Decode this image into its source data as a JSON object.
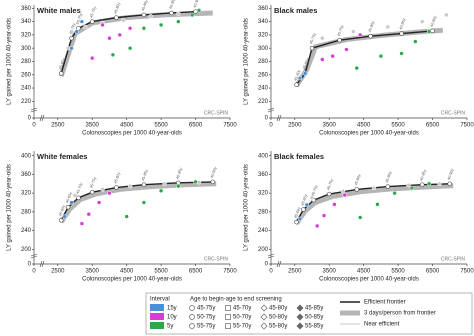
{
  "chart_data": [
    {
      "type": "scatter",
      "title": "White males",
      "xlabel": "Colonoscopies per 1000 40-year-olds",
      "ylabel": "LY gained per 1000 40-year-olds",
      "annotation": "CRC-SPIN",
      "xlim": [
        0,
        7500
      ],
      "xbreak": 2100,
      "xticks": [
        0,
        2500,
        3500,
        4500,
        5500,
        6500,
        7500
      ],
      "ylim": [
        0,
        365
      ],
      "ybreak": 210,
      "yticks": [
        0,
        220,
        240,
        260,
        280,
        300,
        320,
        340,
        360
      ],
      "series": [
        {
          "style": "band",
          "color": "#b5b5b5",
          "x": [
            2600,
            3000,
            3500,
            4500,
            5500,
            6500,
            7000
          ],
          "values": [
            258,
            322,
            338,
            346,
            350,
            352,
            353
          ]
        },
        {
          "style": "line",
          "color": "#222222",
          "x": [
            2600,
            2900,
            3100,
            3500,
            4200,
            5000,
            5800,
            6500
          ],
          "values": [
            262,
            315,
            330,
            340,
            346,
            350,
            353,
            355
          ],
          "point_labels": [
            "45-60y",
            "45-70y",
            "50-75y",
            "45-75y",
            "45-80y",
            "45-85y",
            "40-85y",
            "40-90y"
          ]
        },
        {
          "style": "scatter",
          "color": "#c8c8c8",
          "x": [
            2800,
            3300,
            3800,
            4400,
            5200,
            6000
          ],
          "values": [
            300,
            332,
            338,
            342,
            348,
            352
          ]
        },
        {
          "style": "scatter",
          "color": "#4a90d9",
          "x": [
            3050,
            3200,
            2900
          ],
          "values": [
            325,
            340,
            300
          ]
        },
        {
          "style": "scatter",
          "color": "#d63cd6",
          "x": [
            3500,
            3800,
            4000,
            4300,
            4600
          ],
          "values": [
            285,
            335,
            315,
            320,
            330
          ]
        },
        {
          "style": "scatter",
          "color": "#2aa84a",
          "x": [
            4100,
            4600,
            5000,
            5500,
            6000,
            6400,
            6600
          ],
          "values": [
            290,
            300,
            330,
            335,
            340,
            350,
            357
          ]
        }
      ]
    },
    {
      "type": "scatter",
      "title": "Black males",
      "xlabel": "Colonoscopies per 1000 40-year-olds",
      "ylabel": "LY gained per 1000 40-year-olds",
      "annotation": "CRC-SPIN",
      "xlim": [
        0,
        7500
      ],
      "xbreak": 2100,
      "xticks": [
        0,
        2500,
        3500,
        4500,
        5500,
        6500,
        7500
      ],
      "ylim": [
        0,
        365
      ],
      "ybreak": 210,
      "yticks": [
        0,
        220,
        240,
        260,
        280,
        300,
        320,
        340,
        360
      ],
      "series": [
        {
          "style": "band",
          "color": "#b5b5b5",
          "x": [
            2550,
            2850,
            3100,
            4000,
            5000,
            6000,
            6800
          ],
          "values": [
            243,
            268,
            302,
            313,
            319,
            324,
            327
          ]
        },
        {
          "style": "line",
          "color": "#222222",
          "x": [
            2550,
            2800,
            3000,
            3800,
            4700,
            5600,
            6500
          ],
          "values": [
            245,
            262,
            300,
            312,
            318,
            322,
            326
          ],
          "point_labels": [
            "45-60y",
            "45-65y",
            "45-70y",
            "45-75y",
            "45-80y",
            "40-85y",
            "40-90y"
          ]
        },
        {
          "style": "scatter",
          "color": "#c8c8c8",
          "x": [
            3300,
            4200,
            5200,
            6200,
            6900
          ],
          "values": [
            315,
            325,
            332,
            340,
            350
          ]
        },
        {
          "style": "scatter",
          "color": "#4a90d9",
          "x": [
            2650,
            2800
          ],
          "values": [
            255,
            262
          ]
        },
        {
          "style": "scatter",
          "color": "#d63cd6",
          "x": [
            3300,
            3600,
            4000,
            4400
          ],
          "values": [
            283,
            288,
            298,
            320
          ]
        },
        {
          "style": "scatter",
          "color": "#2aa84a",
          "x": [
            4300,
            5000,
            5600,
            6000,
            6400
          ],
          "values": [
            270,
            288,
            292,
            310,
            325
          ]
        }
      ]
    },
    {
      "type": "scatter",
      "title": "White females",
      "xlabel": "Colonoscopies per 1000 40-year-olds",
      "ylabel": "LY gained per 1000 40-year-olds",
      "annotation": "CRC-SPIN",
      "xlim": [
        0,
        7500
      ],
      "xbreak": 2100,
      "xticks": [
        0,
        2500,
        3500,
        4500,
        5500,
        6500,
        7500
      ],
      "ylim": [
        0,
        410
      ],
      "ybreak": 190,
      "yticks": [
        0,
        200,
        240,
        280,
        320,
        360,
        400
      ],
      "series": [
        {
          "style": "band",
          "color": "#b5b5b5",
          "x": [
            2600,
            2850,
            3150,
            3600,
            4300,
            5200,
            6200,
            7100
          ],
          "values": [
            258,
            286,
            306,
            318,
            328,
            334,
            338,
            340
          ]
        },
        {
          "style": "line",
          "color": "#222222",
          "x": [
            2600,
            2800,
            3100,
            3500,
            4200,
            5000,
            6000,
            7000
          ],
          "values": [
            262,
            290,
            310,
            322,
            332,
            338,
            342,
            344
          ],
          "point_labels": [
            "45-60y",
            "45-65y",
            "45-70y",
            "45-75y",
            "45-80y",
            "45-85y",
            "40-85y",
            "40-90y"
          ]
        },
        {
          "style": "scatter",
          "color": "#c8c8c8",
          "x": [
            3000,
            3800,
            4600,
            5600,
            6600
          ],
          "values": [
            315,
            328,
            335,
            340,
            343
          ]
        },
        {
          "style": "scatter",
          "color": "#4a90d9",
          "x": [
            2700,
            2900
          ],
          "values": [
            270,
            300
          ]
        },
        {
          "style": "scatter",
          "color": "#d63cd6",
          "x": [
            3200,
            3400,
            3700,
            4000
          ],
          "values": [
            255,
            275,
            300,
            320
          ]
        },
        {
          "style": "scatter",
          "color": "#2aa84a",
          "x": [
            4500,
            5000,
            5500,
            6000,
            6500
          ],
          "values": [
            270,
            300,
            325,
            335,
            344
          ]
        }
      ]
    },
    {
      "type": "scatter",
      "title": "Black females",
      "xlabel": "Colonoscopies per 1000 40-year-olds",
      "ylabel": "LY gained per 1000 40-year-olds",
      "annotation": "CRC-SPIN",
      "xlim": [
        0,
        7500
      ],
      "xbreak": 2100,
      "xticks": [
        0,
        2500,
        3500,
        4500,
        5500,
        6500,
        7500
      ],
      "ylim": [
        0,
        410
      ],
      "ybreak": 190,
      "yticks": [
        0,
        200,
        240,
        280,
        320,
        360,
        400
      ],
      "series": [
        {
          "style": "band",
          "color": "#b5b5b5",
          "x": [
            2550,
            2800,
            3100,
            3600,
            4400,
            5300,
            6300,
            7100
          ],
          "values": [
            255,
            282,
            300,
            313,
            323,
            329,
            333,
            336
          ]
        },
        {
          "style": "line",
          "color": "#222222",
          "x": [
            2550,
            2750,
            3050,
            3500,
            4300,
            5200,
            6200,
            7000
          ],
          "values": [
            258,
            285,
            305,
            318,
            328,
            334,
            338,
            340
          ],
          "point_labels": [
            "45-60y",
            "45-65y",
            "45-70y",
            "45-75y",
            "45-80y",
            "45-85y",
            "40-85y",
            "40-90y"
          ]
        },
        {
          "style": "scatter",
          "color": "#c8c8c8",
          "x": [
            3000,
            3900,
            4800,
            5800,
            6700
          ],
          "values": [
            310,
            324,
            331,
            337,
            340
          ]
        },
        {
          "style": "scatter",
          "color": "#4a90d9",
          "x": [
            2650,
            2850
          ],
          "values": [
            265,
            295
          ]
        },
        {
          "style": "scatter",
          "color": "#d63cd6",
          "x": [
            3150,
            3350,
            3650,
            3950
          ],
          "values": [
            250,
            272,
            296,
            316
          ]
        },
        {
          "style": "scatter",
          "color": "#2aa84a",
          "x": [
            4400,
            4900,
            5400,
            5900,
            6400
          ],
          "values": [
            268,
            296,
            320,
            331,
            340
          ]
        }
      ]
    }
  ],
  "legend": {
    "interval_title": "Interval",
    "intervals": [
      {
        "label": "15y",
        "color": "#4a90d9"
      },
      {
        "label": "10y",
        "color": "#d63cd6"
      },
      {
        "label": "5y",
        "color": "#2aa84a"
      }
    ],
    "age_title": "Age to begin-age to end screening",
    "ages": [
      {
        "label": "45-75y",
        "shape": "circle"
      },
      {
        "label": "50-75y",
        "shape": "circle"
      },
      {
        "label": "55-75y",
        "shape": "circle"
      },
      {
        "label": "45-70y",
        "shape": "square"
      },
      {
        "label": "50-70y",
        "shape": "square"
      },
      {
        "label": "55-70y",
        "shape": "square"
      },
      {
        "label": "45-80y",
        "shape": "diamond"
      },
      {
        "label": "50-80y",
        "shape": "diamond"
      },
      {
        "label": "55-80y",
        "shape": "diamond"
      },
      {
        "label": "45-85y",
        "shape": "diamond-filled"
      },
      {
        "label": "50-85y",
        "shape": "diamond-filled"
      },
      {
        "label": "55-85y",
        "shape": "diamond-filled"
      }
    ],
    "lines": [
      {
        "label": "Efficient frontier",
        "color": "#222222",
        "width": 1.5
      },
      {
        "label": "3 days/person from frontier",
        "color": "#b5b5b5",
        "width": 5
      },
      {
        "label": "Near efficient",
        "color": "#c8c8c8",
        "width": 1
      }
    ]
  }
}
